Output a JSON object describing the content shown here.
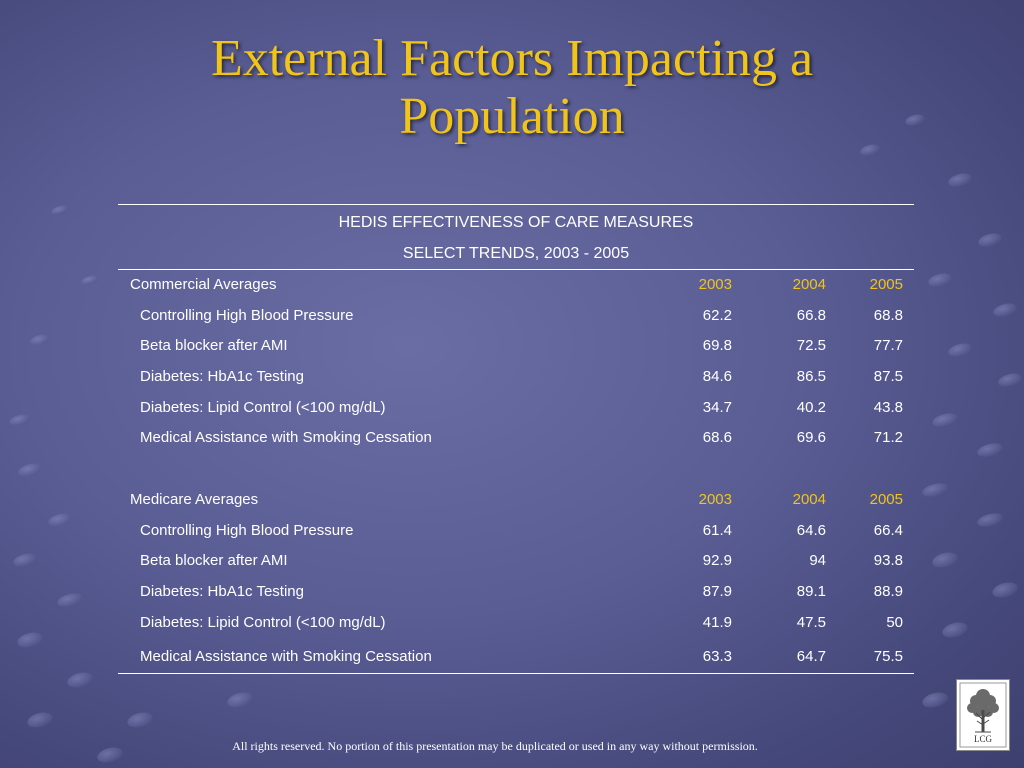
{
  "slide": {
    "title": "External Factors Impacting a Population",
    "footer": "All rights reserved. No portion of this presentation may be duplicated or used in any way without permission.",
    "logo_text": "LCG"
  },
  "table": {
    "header_line1": "HEDIS EFFECTIVENESS OF CARE MEASURES",
    "header_line2": "SELECT TRENDS, 2003 - 2005",
    "sections": [
      {
        "title": "Commercial Averages",
        "years": [
          "2003",
          "2004",
          "2005"
        ],
        "rows": [
          {
            "label": "Controlling High Blood Pressure",
            "values": [
              "62.2",
              "66.8",
              "68.8"
            ]
          },
          {
            "label": "Beta blocker after AMI",
            "values": [
              "69.8",
              "72.5",
              "77.7"
            ]
          },
          {
            "label": "Diabetes: HbA1c Testing",
            "values": [
              "84.6",
              "86.5",
              "87.5"
            ]
          },
          {
            "label": "Diabetes: Lipid Control (<100 mg/dL)",
            "values": [
              "34.7",
              "40.2",
              "43.8"
            ]
          },
          {
            "label": "Medical Assistance with Smoking Cessation",
            "values": [
              "68.6",
              "69.6",
              "71.2"
            ]
          }
        ]
      },
      {
        "title": "Medicare Averages",
        "years": [
          "2003",
          "2004",
          "2005"
        ],
        "rows": [
          {
            "label": "Controlling High Blood Pressure",
            "values": [
              "61.4",
              "64.6",
              "66.4"
            ]
          },
          {
            "label": "Beta blocker after AMI",
            "values": [
              "92.9",
              "94",
              "93.8"
            ]
          },
          {
            "label": "Diabetes: HbA1c Testing",
            "values": [
              "87.9",
              "89.1",
              "88.9"
            ]
          },
          {
            "label": "Diabetes: Lipid Control (<100 mg/dL)",
            "values": [
              "41.9",
              "47.5",
              "50"
            ]
          },
          {
            "label": "Medical Assistance with Smoking Cessation",
            "values": [
              "63.3",
              "64.7",
              "75.5"
            ]
          }
        ]
      }
    ]
  },
  "colors": {
    "title": "#f0c419",
    "year_header": "#f0c419",
    "text": "#ffffff",
    "background": "#5a5d94"
  }
}
